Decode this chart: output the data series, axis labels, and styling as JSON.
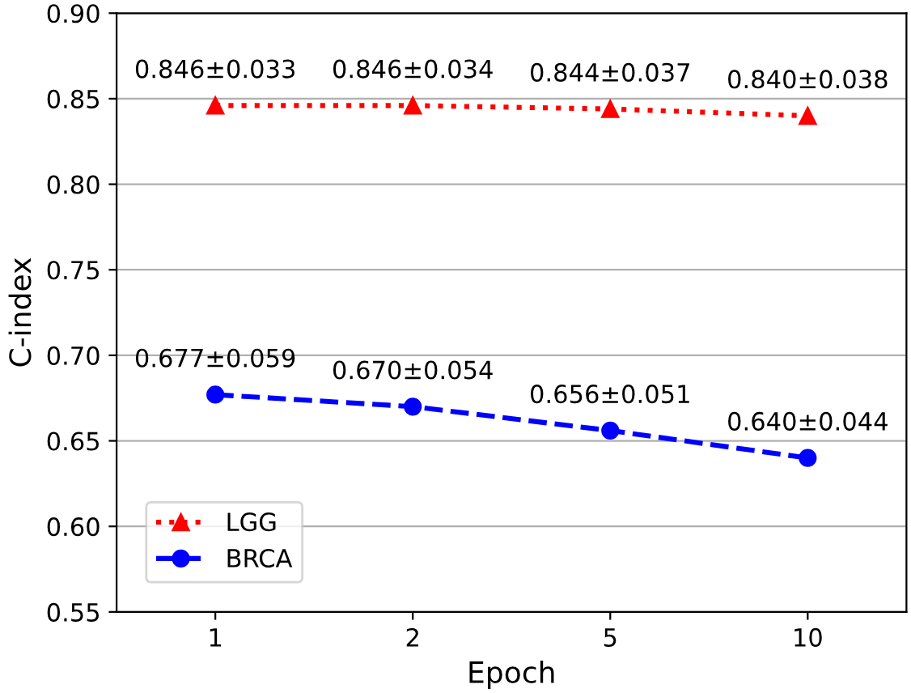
{
  "chart_data": {
    "type": "line",
    "xlabel": "Epoch",
    "ylabel": "C-index",
    "categories": [
      "1",
      "2",
      "5",
      "10"
    ],
    "series": [
      {
        "name": "LGG",
        "color": "#ff0000",
        "values": [
          0.846,
          0.846,
          0.844,
          0.84
        ],
        "marker": "triangle",
        "line_style": "dotted",
        "value_labels": [
          "0.846±0.033",
          "0.846±0.034",
          "0.844±0.037",
          "0.840±0.038"
        ]
      },
      {
        "name": "BRCA",
        "color": "#0000ff",
        "values": [
          0.677,
          0.67,
          0.656,
          0.64
        ],
        "marker": "circle",
        "line_style": "dashed",
        "value_labels": [
          "0.677±0.059",
          "0.670±0.054",
          "0.656±0.051",
          "0.640±0.044"
        ]
      }
    ],
    "ylim": [
      0.55,
      0.9
    ],
    "yticks": [
      0.55,
      {
        "value": 0.6,
        "label": "0.60"
      },
      0.65,
      {
        "value": 0.7,
        "label": "0.70"
      },
      0.75,
      {
        "value": 0.8,
        "label": "0.80"
      },
      0.85,
      {
        "value": 0.9,
        "label": "0.90"
      }
    ],
    "grid": "y",
    "legend": "bottom left"
  }
}
